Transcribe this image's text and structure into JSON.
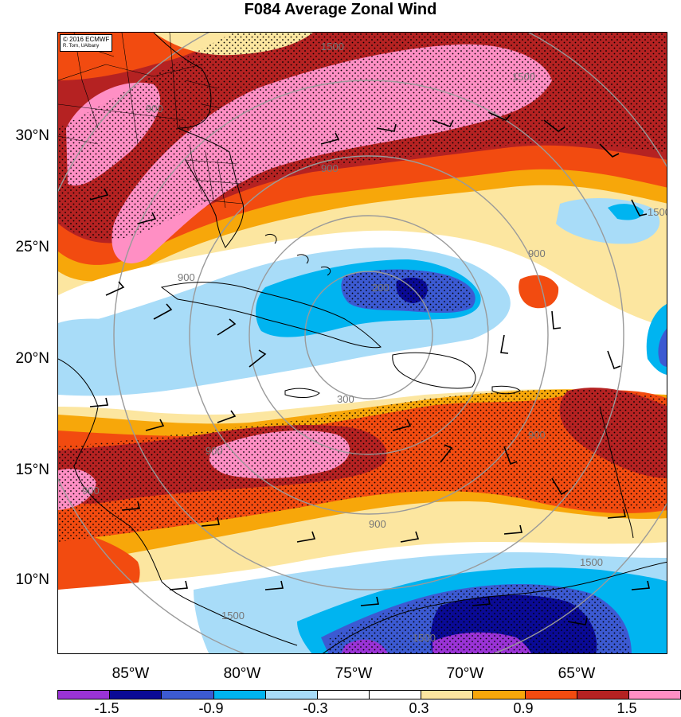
{
  "title": "F084 Average Zonal Wind",
  "credit": {
    "line1": "© 2016 ECMWF",
    "line2": "R. Torn, UAlbany"
  },
  "latitude_labels": [
    "30°N",
    "25°N",
    "20°N",
    "15°N",
    "10°N"
  ],
  "longitude_labels": [
    "85°W",
    "80°W",
    "75°W",
    "70°W",
    "65°W"
  ],
  "colorbar": {
    "colors": [
      "#9a33d6",
      "#0a0a96",
      "#3c5ad2",
      "#00b4f0",
      "#a8dcf8",
      "#ffffff",
      "#ffffff",
      "#fce6a0",
      "#f7a70a",
      "#f24b10",
      "#b52222",
      "#ff8fc4"
    ],
    "labels": [
      "-1.5",
      "-0.9",
      "-0.3",
      "0.3",
      "0.9",
      "1.5"
    ]
  },
  "contour_labels": [
    "1500",
    "900",
    "900",
    "900",
    "900",
    "900",
    "200",
    "300",
    "900",
    "900",
    "1500",
    "1500",
    "1500",
    "1500",
    "1500",
    "900"
  ],
  "field_colors": {
    "pink": "#ff8fc4",
    "maroon": "#b52222",
    "red": "#f24b10",
    "orange": "#f7a70a",
    "yellow": "#fce6a0",
    "white": "#ffffff",
    "lightblue": "#a8dcf8",
    "cyan": "#00b4f0",
    "blue": "#3c5ad2",
    "navy": "#0a0a96",
    "purple": "#9a33d6"
  }
}
